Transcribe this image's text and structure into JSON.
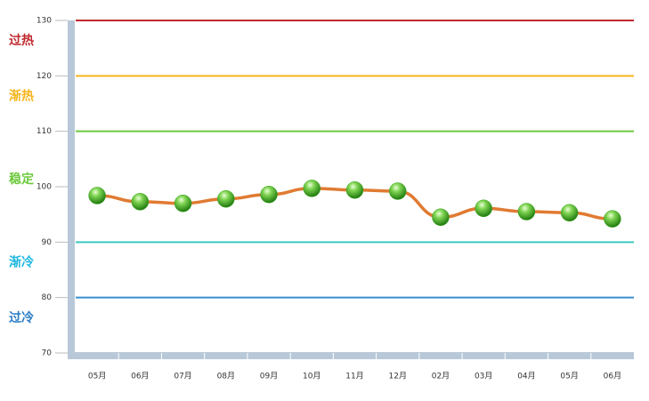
{
  "chart_data": {
    "type": "line",
    "categories": [
      "05月",
      "06月",
      "07月",
      "08月",
      "09月",
      "10月",
      "11月",
      "12月",
      "02月",
      "03月",
      "04月",
      "05月",
      "06月"
    ],
    "values": [
      98.4,
      97.3,
      97.0,
      97.8,
      98.6,
      99.7,
      99.4,
      99.2,
      94.5,
      96.1,
      95.5,
      95.3,
      94.2
    ],
    "color": "#e07b32",
    "marker_color": "#3aa61e",
    "ylim": [
      70,
      130
    ],
    "yticks": [
      70,
      80,
      90,
      100,
      110,
      120,
      130
    ],
    "reference_lines": [
      {
        "value": 130,
        "color": "#c0282d"
      },
      {
        "value": 120,
        "color": "#f5b51c"
      },
      {
        "value": 110,
        "color": "#6cc93c"
      },
      {
        "value": 90,
        "color": "#3cc8c0"
      },
      {
        "value": 80,
        "color": "#3a8fd0"
      }
    ],
    "zones": [
      {
        "label": "过热",
        "color": "#c0282d"
      },
      {
        "label": "渐热",
        "color": "#f5b51c"
      },
      {
        "label": "稳定",
        "color": "#6cc93c"
      },
      {
        "label": "渐冷",
        "color": "#1fb8e0"
      },
      {
        "label": "过冷",
        "color": "#2a7cc4"
      }
    ]
  }
}
